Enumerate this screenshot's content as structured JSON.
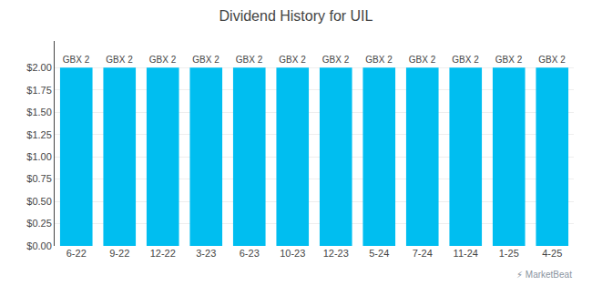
{
  "chart_data": {
    "type": "bar",
    "title": "Dividend History for UIL",
    "categories": [
      "6-22",
      "9-22",
      "12-22",
      "3-23",
      "6-23",
      "10-23",
      "12-23",
      "5-24",
      "7-24",
      "11-24",
      "1-25",
      "4-25"
    ],
    "values": [
      2.0,
      2.0,
      2.0,
      2.0,
      2.0,
      2.0,
      2.0,
      2.0,
      2.0,
      2.0,
      2.0,
      2.0
    ],
    "value_labels": [
      "GBX 2",
      "GBX 2",
      "GBX 2",
      "GBX 2",
      "GBX 2",
      "GBX 2",
      "GBX 2",
      "GBX 2",
      "GBX 2",
      "GBX 2",
      "GBX 2",
      "GBX 2"
    ],
    "data_labels": true,
    "color": "#00bef0",
    "ylim": [
      0,
      2.3
    ],
    "yticks": [
      {
        "value": 0.0,
        "label": "$0.00"
      },
      {
        "value": 0.25,
        "label": "$0.25"
      },
      {
        "value": 0.5,
        "label": "$0.50"
      },
      {
        "value": 0.75,
        "label": "$0.75"
      },
      {
        "value": 1.0,
        "label": "$1.00"
      },
      {
        "value": 1.25,
        "label": "$1.25"
      },
      {
        "value": 1.5,
        "label": "$1.50"
      },
      {
        "value": 1.75,
        "label": "$1.75"
      },
      {
        "value": 2.0,
        "label": "$2.00"
      }
    ],
    "grid": true,
    "annotations": [
      "⚡ MarketBeat"
    ]
  }
}
